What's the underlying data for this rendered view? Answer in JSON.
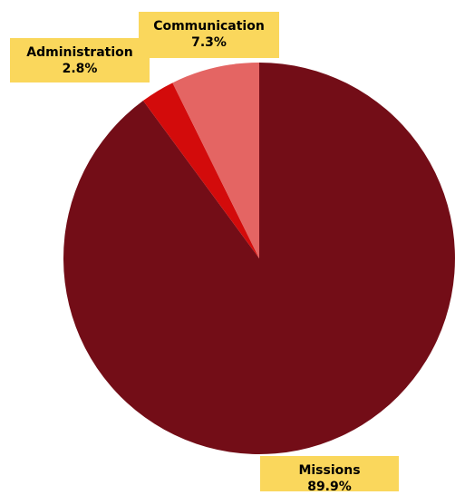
{
  "chart_data": {
    "type": "pie",
    "title": "",
    "slices": [
      {
        "name": "Missions",
        "value": 89.9,
        "label": "89.9%",
        "color": "#730d17"
      },
      {
        "name": "Administration",
        "value": 2.8,
        "label": "2.8%",
        "color": "#d30b0b"
      },
      {
        "name": "Communication",
        "value": 7.3,
        "label": "7.3%",
        "color": "#e46563"
      }
    ],
    "label_style": {
      "background": "#fad75c"
    }
  }
}
